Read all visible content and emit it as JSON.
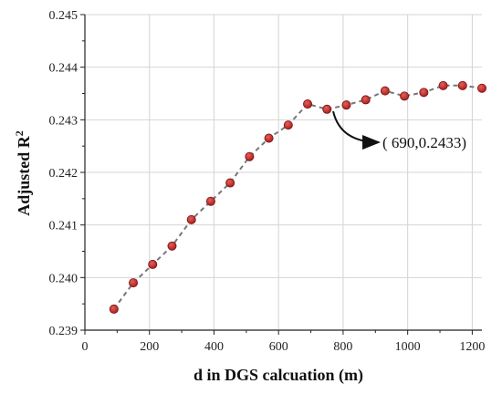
{
  "chart_data": {
    "type": "scatter",
    "title": "",
    "xlabel": "d in DGS calcuation (m)",
    "ylabel_main": "Adjusted R",
    "ylabel_sup": "2",
    "xlim": [
      0,
      1230
    ],
    "ylim": [
      0.239,
      0.245
    ],
    "x_ticks": [
      0,
      200,
      400,
      600,
      800,
      1000,
      1200
    ],
    "y_ticks": [
      0.239,
      0.24,
      0.241,
      0.242,
      0.243,
      0.244,
      0.245
    ],
    "x_tick_labels": [
      "0",
      "200",
      "400",
      "600",
      "800",
      "1000",
      "1200"
    ],
    "y_tick_labels": [
      "0.239",
      "0.240",
      "0.241",
      "0.242",
      "0.243",
      "0.244",
      "0.245"
    ],
    "grid": true,
    "line_style": "dashed",
    "series": [
      {
        "x": [
          90,
          150,
          210,
          270,
          330,
          390,
          450,
          510,
          570,
          630,
          690,
          750,
          810,
          870,
          930,
          990,
          1050,
          1110,
          1170,
          1230
        ],
        "y": [
          0.2394,
          0.2399,
          0.24025,
          0.2406,
          0.2411,
          0.24145,
          0.2418,
          0.2423,
          0.24265,
          0.2429,
          0.2433,
          0.2432,
          0.24328,
          0.24338,
          0.24355,
          0.24345,
          0.24352,
          0.24365,
          0.24365,
          0.2436
        ]
      }
    ],
    "annotation": {
      "text": "( 690,0.2433)",
      "point_x": 690,
      "point_y": 0.2433
    },
    "colors": {
      "marker": "#c0302f",
      "marker_edge": "#7a1414",
      "line": "#777777",
      "grid": "#d4d4d4",
      "axis": "#222222"
    }
  }
}
